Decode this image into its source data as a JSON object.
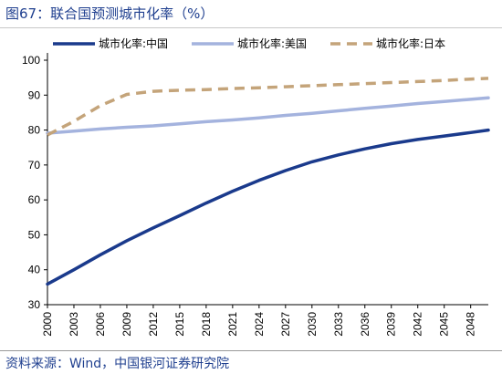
{
  "header": {
    "title": "图67：联合国预测城市化率（%）"
  },
  "footer": {
    "source": "资料来源：Wind，中国银河证券研究院"
  },
  "chart_data": {
    "type": "line",
    "title": "",
    "xlabel": "",
    "ylabel": "",
    "x_ticks": [
      "2000",
      "2003",
      "2006",
      "2009",
      "2012",
      "2015",
      "2018",
      "2021",
      "2024",
      "2027",
      "2030",
      "2033",
      "2036",
      "2039",
      "2042",
      "2045",
      "2048"
    ],
    "x_range": [
      2000,
      2050
    ],
    "ylim": [
      30,
      100
    ],
    "y_ticks": [
      30,
      40,
      50,
      60,
      70,
      80,
      90,
      100
    ],
    "grid": false,
    "legend": "top",
    "series": [
      {
        "name": "城市化率:中国",
        "color": "#1a3a8c",
        "style": "solid",
        "x": [
          2000,
          2003,
          2006,
          2009,
          2012,
          2015,
          2018,
          2021,
          2024,
          2027,
          2030,
          2033,
          2036,
          2039,
          2042,
          2045,
          2048,
          2050
        ],
        "y": [
          35.9,
          40.0,
          44.3,
          48.3,
          52.0,
          55.5,
          59.1,
          62.5,
          65.6,
          68.4,
          70.9,
          72.9,
          74.6,
          76.1,
          77.3,
          78.3,
          79.3,
          80.0
        ]
      },
      {
        "name": "城市化率:美国",
        "color": "#a4b3de",
        "style": "solid",
        "x": [
          2000,
          2003,
          2006,
          2009,
          2012,
          2015,
          2018,
          2021,
          2024,
          2027,
          2030,
          2033,
          2036,
          2039,
          2042,
          2045,
          2048,
          2050
        ],
        "y": [
          79.1,
          79.7,
          80.3,
          80.8,
          81.2,
          81.8,
          82.4,
          82.9,
          83.5,
          84.2,
          84.8,
          85.5,
          86.2,
          86.9,
          87.6,
          88.2,
          88.8,
          89.2
        ]
      },
      {
        "name": "城市化率:日本",
        "color": "#c4a47a",
        "style": "dashed",
        "x": [
          2000,
          2003,
          2006,
          2009,
          2012,
          2015,
          2018,
          2021,
          2024,
          2027,
          2030,
          2033,
          2036,
          2039,
          2042,
          2045,
          2048,
          2050
        ],
        "y": [
          78.6,
          82.5,
          87.0,
          90.2,
          91.1,
          91.4,
          91.6,
          91.9,
          92.1,
          92.4,
          92.7,
          93.0,
          93.3,
          93.6,
          93.9,
          94.2,
          94.6,
          94.8
        ]
      }
    ]
  }
}
